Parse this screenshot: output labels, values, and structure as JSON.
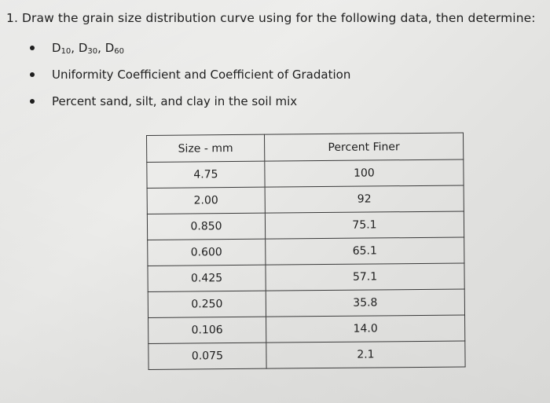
{
  "question": {
    "text": "1. Draw the grain size distribution curve using for the following data, then determine:"
  },
  "bullets": {
    "d_values": {
      "d10_base": "D",
      "d10_sub": "10",
      "sep1": ", ",
      "d30_base": "D",
      "d30_sub": "30",
      "sep2": ", ",
      "d60_base": "D",
      "d60_sub": "60"
    },
    "coefficients": "Uniformity Coefficient and Coefficient of Gradation",
    "percentages": "Percent sand, silt, and clay in the soil mix"
  },
  "table": {
    "headers": [
      "Size - mm",
      "Percent Finer"
    ],
    "rows": [
      [
        "4.75",
        "100"
      ],
      [
        "2.00",
        "92"
      ],
      [
        "0.850",
        "75.1"
      ],
      [
        "0.600",
        "65.1"
      ],
      [
        "0.425",
        "57.1"
      ],
      [
        "0.250",
        "35.8"
      ],
      [
        "0.106",
        "14.0"
      ],
      [
        "0.075",
        "2.1"
      ]
    ]
  }
}
